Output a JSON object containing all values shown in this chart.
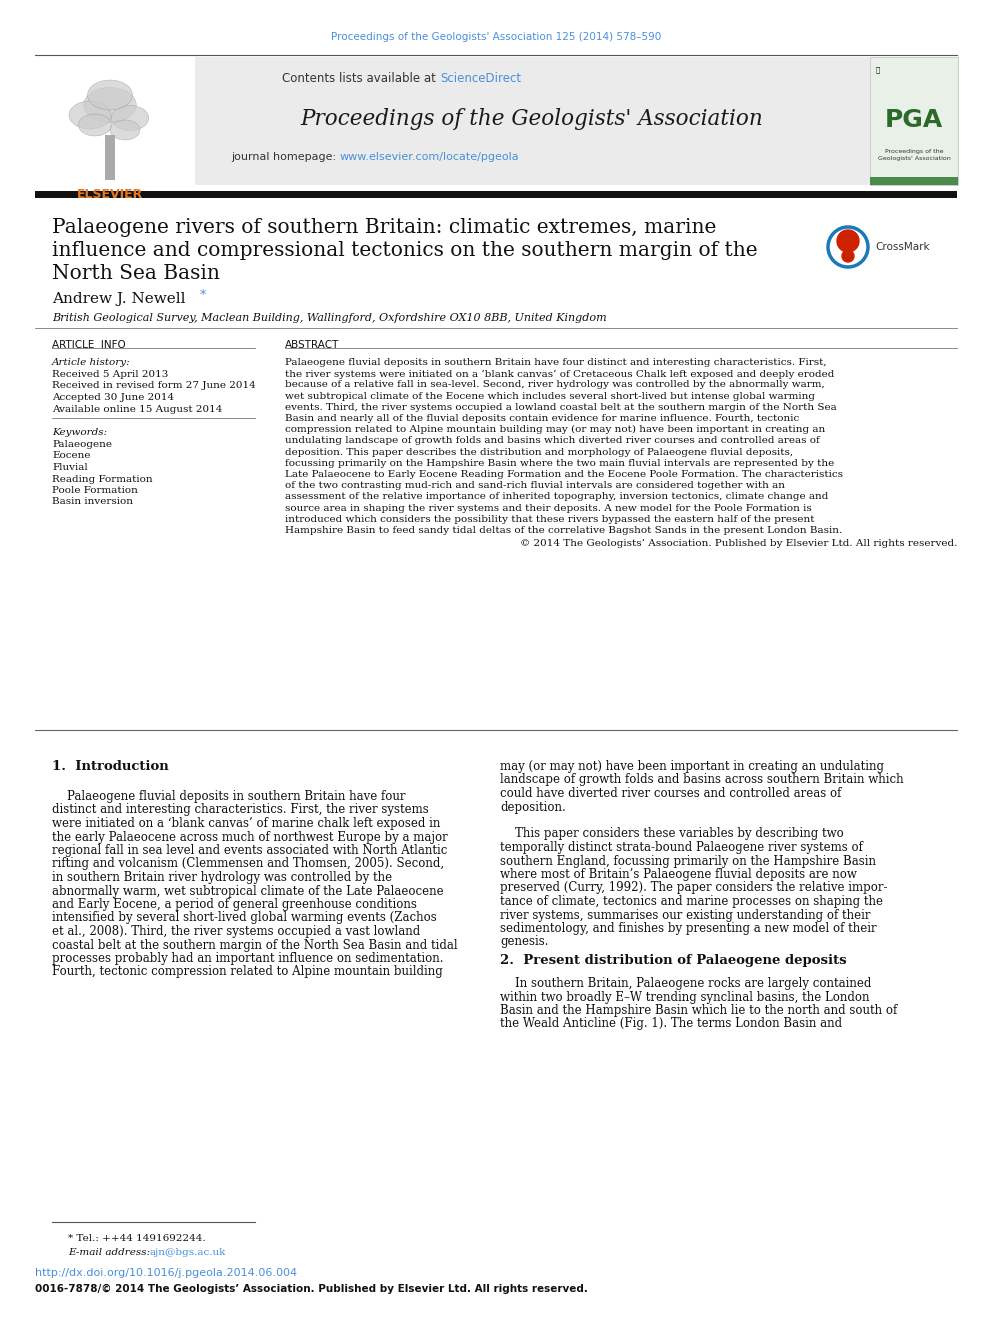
{
  "journal_ref": "Proceedings of the Geologists' Association 125 (2014) 578–590",
  "journal_name": "Proceedings of the Geologists' Association",
  "title_line1": "Palaeogene rivers of southern Britain: climatic extremes, marine",
  "title_line2": "influence and compressional tectonics on the southern margin of the",
  "title_line3": "North Sea Basin",
  "author": "Andrew J. Newell",
  "affiliation": "British Geological Survey, Maclean Building, Wallingford, Oxfordshire OX10 8BB, United Kingdom",
  "article_history_label": "Article history:",
  "received1": "Received 5 April 2013",
  "revised": "Received in revised form 27 June 2014",
  "accepted": "Accepted 30 June 2014",
  "available": "Available online 15 August 2014",
  "keywords_label": "Keywords:",
  "keywords": [
    "Palaeogene",
    "Eocene",
    "Fluvial",
    "Reading Formation",
    "Poole Formation",
    "Basin inversion"
  ],
  "abstract_label": "ABSTRACT",
  "copyright": "© 2014 The Geologists’ Association. Published by Elsevier Ltd. All rights reserved.",
  "section1_title": "1.  Introduction",
  "section2_title": "2.  Present distribution of Palaeogene deposits",
  "footer_note": "* Tel.: ++44 1491692244.",
  "footer_email_label": "E-mail address:",
  "footer_email": "ajn@bgs.ac.uk",
  "footer_doi": "http://dx.doi.org/10.1016/j.pgeola.2014.06.004",
  "footer_issn": "0016-7878/© 2014 The Geologists’ Association. Published by Elsevier Ltd. All rights reserved.",
  "article_info_label": "ARTICLE INFO",
  "blue_color": "#4A90D9",
  "orange_color": "#E87722",
  "link_color": "#4A90D9",
  "header_bg": "#ebebeb",
  "abstract_lines": [
    "Palaeogene fluvial deposits in southern Britain have four distinct and interesting characteristics. First,",
    "the river systems were initiated on a ‘blank canvas’ of Cretaceous Chalk left exposed and deeply eroded",
    "because of a relative fall in sea-level. Second, river hydrology was controlled by the abnormally warm,",
    "wet subtropical climate of the Eocene which includes several short-lived but intense global warming",
    "events. Third, the river systems occupied a lowland coastal belt at the southern margin of the North Sea",
    "Basin and nearly all of the fluvial deposits contain evidence for marine influence. Fourth, tectonic",
    "compression related to Alpine mountain building may (or may not) have been important in creating an",
    "undulating landscape of growth folds and basins which diverted river courses and controlled areas of",
    "deposition. This paper describes the distribution and morphology of Palaeogene fluvial deposits,",
    "focussing primarily on the Hampshire Basin where the two main fluvial intervals are represented by the",
    "Late Palaeocene to Early Eocene Reading Formation and the Eocene Poole Formation. The characteristics",
    "of the two contrasting mud-rich and sand-rich fluvial intervals are considered together with an",
    "assessment of the relative importance of inherited topography, inversion tectonics, climate change and",
    "source area in shaping the river systems and their deposits. A new model for the Poole Formation is",
    "introduced which considers the possibility that these rivers bypassed the eastern half of the present",
    "Hampshire Basin to feed sandy tidal deltas of the correlative Bagshot Sands in the present London Basin."
  ],
  "intro1_lines": [
    "    Palaeogene fluvial deposits in southern Britain have four",
    "distinct and interesting characteristics. First, the river systems",
    "were initiated on a ‘blank canvas’ of marine chalk left exposed in",
    "the early Palaeocene across much of northwest Europe by a major",
    "regional fall in sea level and events associated with North Atlantic",
    "rifting and volcanism (Clemmensen and Thomsen, 2005). Second,",
    "in southern Britain river hydrology was controlled by the",
    "abnormally warm, wet subtropical climate of the Late Palaeocene",
    "and Early Eocene, a period of general greenhouse conditions",
    "intensified by several short-lived global warming events (Zachos",
    "et al., 2008). Third, the river systems occupied a vast lowland",
    "coastal belt at the southern margin of the North Sea Basin and tidal",
    "processes probably had an important influence on sedimentation.",
    "Fourth, tectonic compression related to Alpine mountain building"
  ],
  "intro2_lines": [
    "may (or may not) have been important in creating an undulating",
    "landscape of growth folds and basins across southern Britain which",
    "could have diverted river courses and controlled areas of",
    "deposition.",
    "",
    "    This paper considers these variables by describing two",
    "temporally distinct strata-bound Palaeogene river systems of",
    "southern England, focussing primarily on the Hampshire Basin",
    "where most of Britain’s Palaeogene fluvial deposits are now",
    "preserved (Curry, 1992). The paper considers the relative impor-",
    "tance of climate, tectonics and marine processes on shaping the",
    "river systems, summarises our existing understanding of their",
    "sedimentology, and finishes by presenting a new model of their",
    "genesis."
  ],
  "sec2_lines": [
    "    In southern Britain, Palaeogene rocks are largely contained",
    "within two broadly E–W trending synclinal basins, the London",
    "Basin and the Hampshire Basin which lie to the north and south of",
    "the Weald Anticline (Fig. 1). The terms London Basin and"
  ]
}
